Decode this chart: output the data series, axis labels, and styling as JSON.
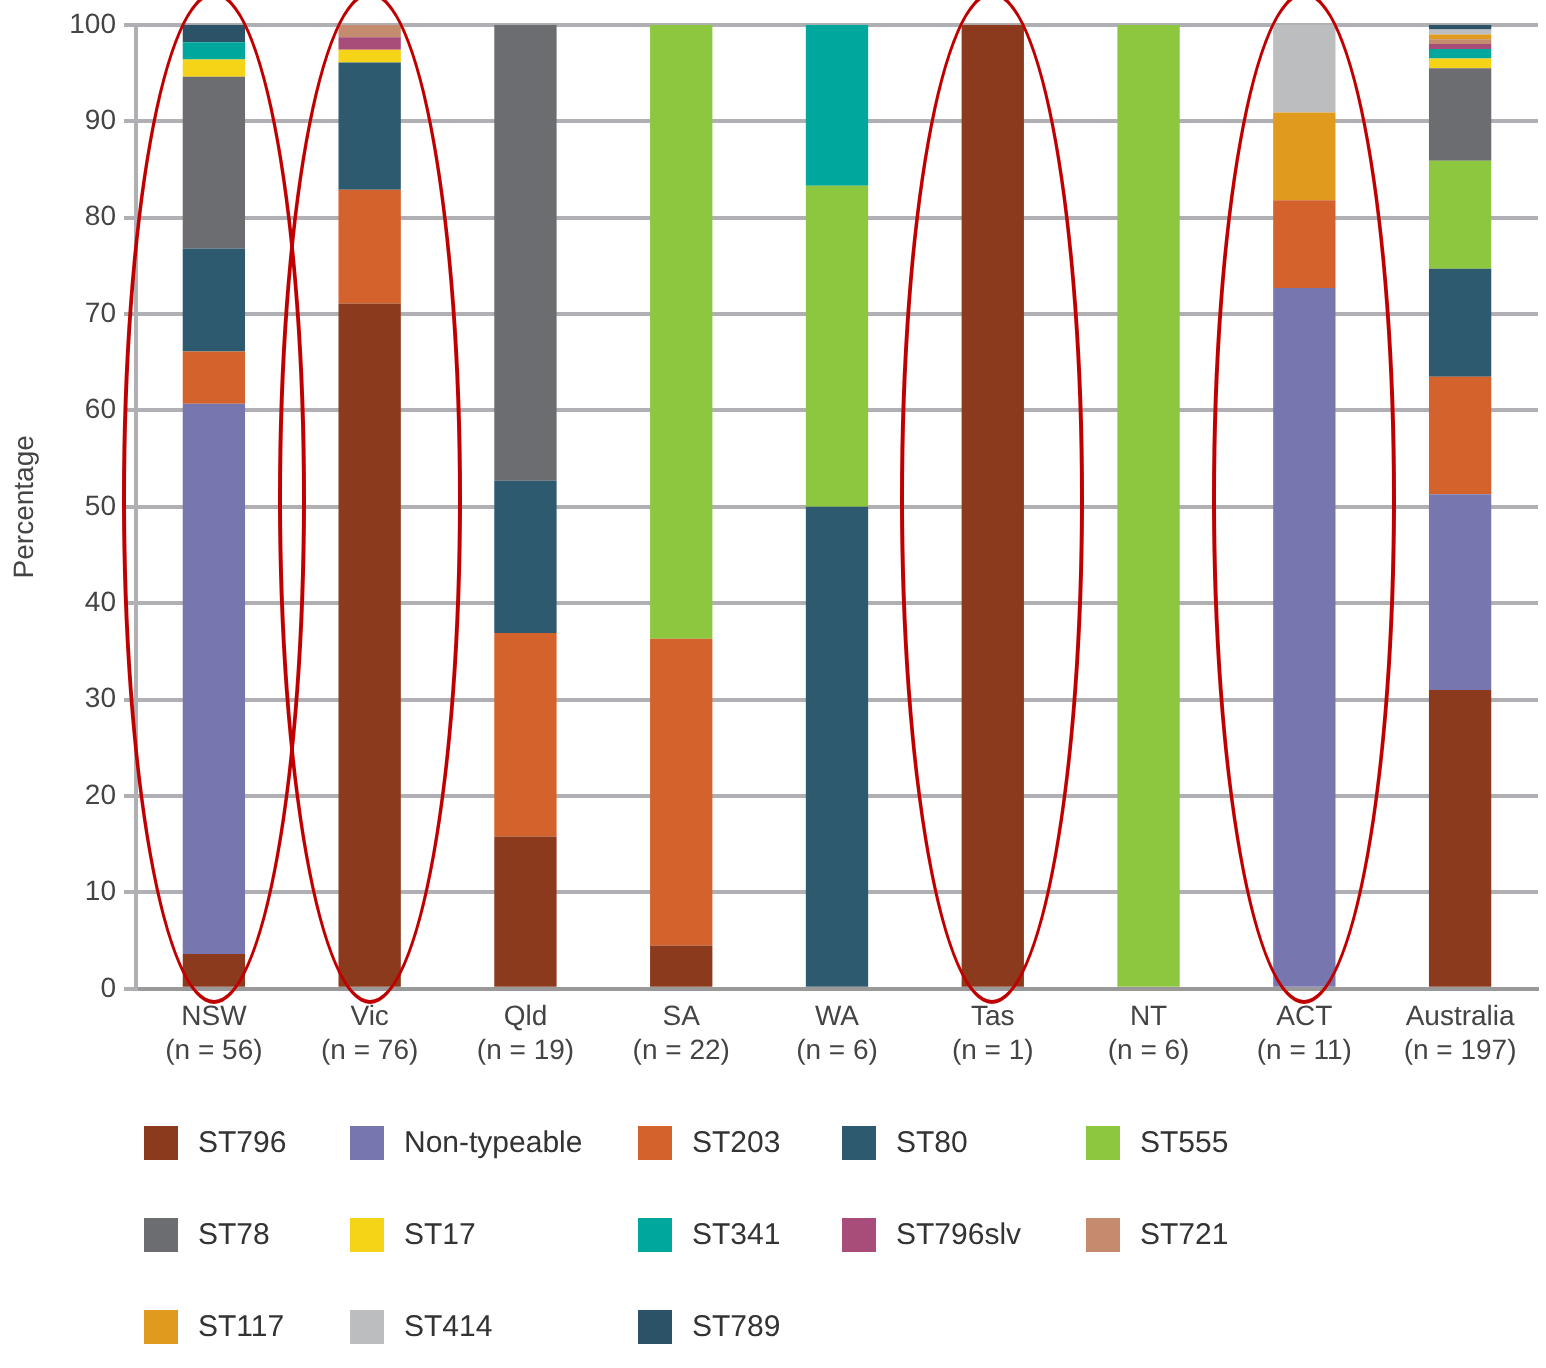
{
  "chart_data": {
    "type": "bar",
    "stacked": true,
    "ylabel": "Percentage",
    "categories": [
      "NSW\n(n = 56)",
      "Vic\n(n = 76)",
      "Qld\n(n = 19)",
      "SA\n(n = 22)",
      "WA\n(n = 6)",
      "Tas\n(n = 1)",
      "NT\n(n = 6)",
      "ACT\n(n = 11)",
      "Australia\n(n = 197)"
    ],
    "ylim": [
      0,
      100
    ],
    "yticks": [
      0,
      10,
      20,
      30,
      40,
      50,
      60,
      70,
      80,
      90,
      100
    ],
    "grid": "y",
    "legend": "bottom",
    "series": [
      {
        "name": "ST796",
        "color": "#8b3a1e",
        "values": [
          3.6,
          71.1,
          15.8,
          4.5,
          0,
          100,
          0,
          0,
          31.0
        ]
      },
      {
        "name": "Non-typeable",
        "color": "#7876ae",
        "values": [
          57.1,
          0,
          0,
          0,
          0,
          0,
          0,
          72.7,
          20.3
        ]
      },
      {
        "name": "ST203",
        "color": "#d4622c",
        "values": [
          5.4,
          11.8,
          21.1,
          31.8,
          0,
          0,
          0,
          9.1,
          12.2
        ]
      },
      {
        "name": "ST80",
        "color": "#2d5a6e",
        "values": [
          10.7,
          13.2,
          15.8,
          0,
          50.0,
          0,
          0,
          0,
          11.2
        ]
      },
      {
        "name": "ST555",
        "color": "#8dc63f",
        "values": [
          0,
          0,
          0,
          63.7,
          33.3,
          0,
          100,
          0,
          11.2
        ]
      },
      {
        "name": "ST78",
        "color": "#6b6d70",
        "values": [
          17.8,
          0,
          47.3,
          0,
          0,
          0,
          0,
          0,
          9.6
        ]
      },
      {
        "name": "ST17",
        "color": "#f5d417",
        "values": [
          1.8,
          1.3,
          0,
          0,
          0,
          0,
          0,
          0,
          1.0
        ]
      },
      {
        "name": "ST341",
        "color": "#00a79d",
        "values": [
          1.8,
          0,
          0,
          0,
          16.7,
          0,
          0,
          0,
          1.0
        ]
      },
      {
        "name": "ST796slv",
        "color": "#a84d7a",
        "values": [
          0,
          1.3,
          0,
          0,
          0,
          0,
          0,
          0,
          0.5
        ]
      },
      {
        "name": "ST721",
        "color": "#c48b6e",
        "values": [
          0,
          1.3,
          0,
          0,
          0,
          0,
          0,
          0,
          0.5
        ]
      },
      {
        "name": "ST117",
        "color": "#e09a1e",
        "values": [
          0,
          0,
          0,
          0,
          0,
          0,
          0,
          9.1,
          0.5
        ]
      },
      {
        "name": "ST414",
        "color": "#bcbdbf",
        "values": [
          0,
          0,
          0,
          0,
          0,
          0,
          0,
          9.1,
          0.5
        ]
      },
      {
        "name": "ST789",
        "color": "#2b5266",
        "values": [
          1.8,
          0,
          0,
          0,
          0,
          0,
          0,
          0,
          0.5
        ]
      }
    ]
  }
}
